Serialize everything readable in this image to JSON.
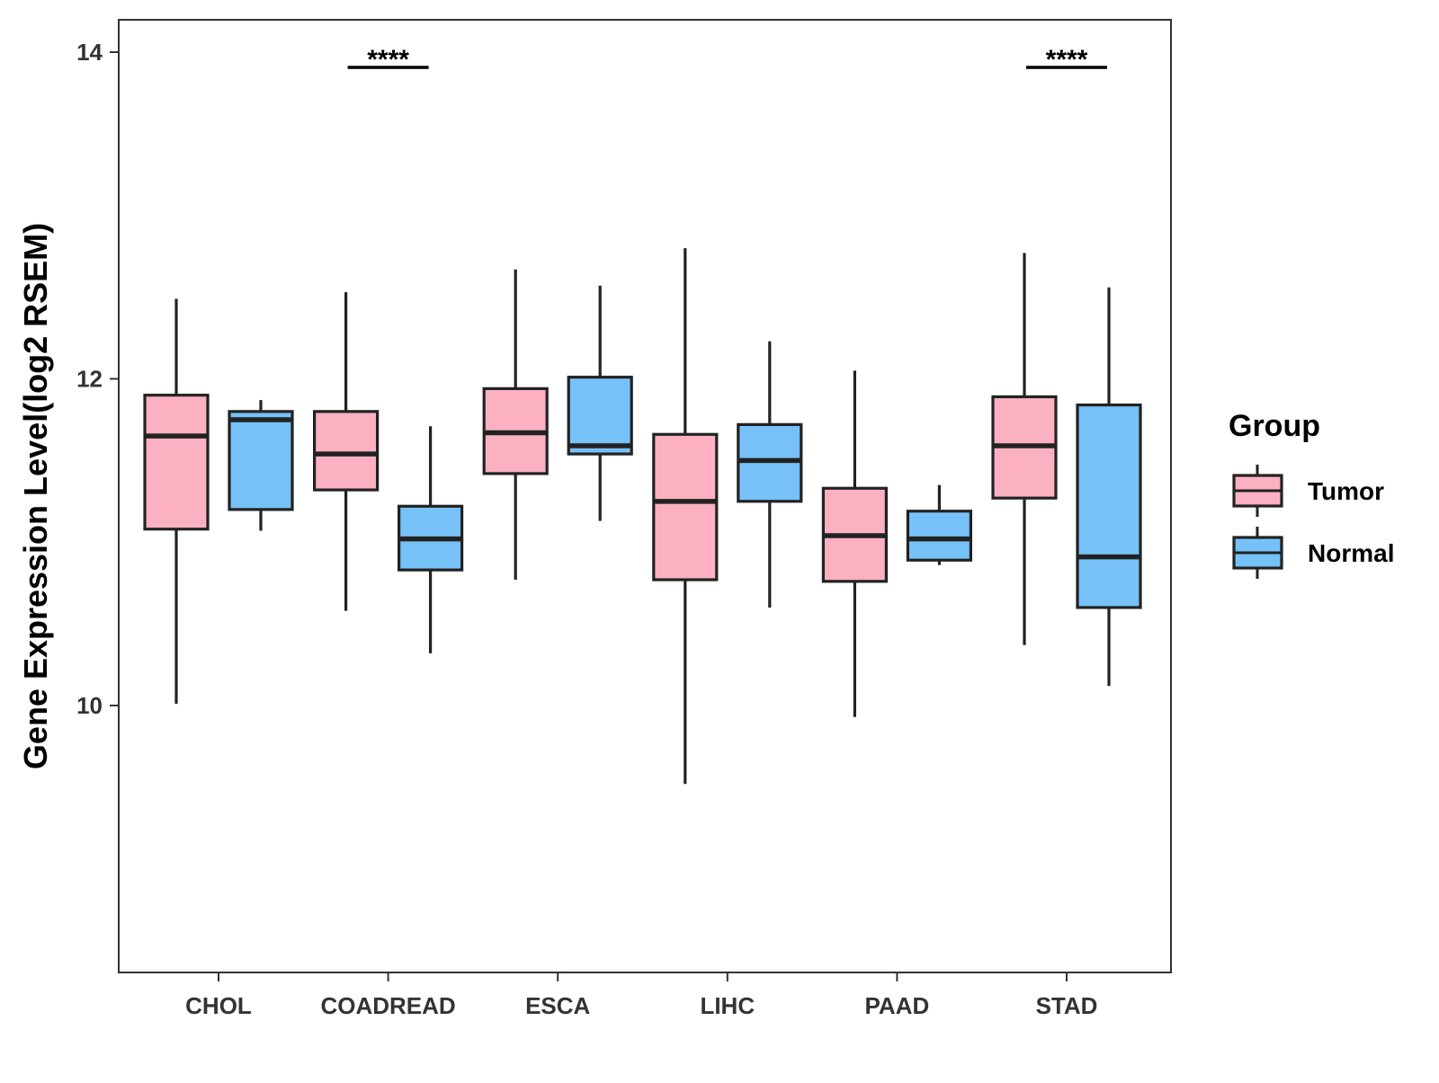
{
  "chart_data": {
    "type": "boxplot",
    "title": "",
    "xlabel": "",
    "ylabel": "Gene Expression Level(log2 RSEM)",
    "ylim": [
      8.4,
      14.2
    ],
    "yticks": [
      "10",
      "12",
      "14"
    ],
    "categories": [
      "CHOL",
      "COADREAD",
      "ESCA",
      "LIHC",
      "PAAD",
      "STAD"
    ],
    "legend": {
      "title": "Group",
      "position": "right",
      "items": [
        {
          "name": "Tumor",
          "color": "#FBB1C2"
        },
        {
          "name": "Normal",
          "color": "#76C1F8"
        }
      ]
    },
    "series": [
      {
        "name": "Tumor",
        "color": "#FBB1C2",
        "boxes": [
          {
            "category": "CHOL",
            "min": 10.01,
            "q1": 11.08,
            "median": 11.65,
            "q3": 11.9,
            "max": 12.49
          },
          {
            "category": "COADREAD",
            "min": 10.58,
            "q1": 11.32,
            "median": 11.54,
            "q3": 11.8,
            "max": 12.53
          },
          {
            "category": "ESCA",
            "min": 10.77,
            "q1": 11.42,
            "median": 11.67,
            "q3": 11.94,
            "max": 12.67
          },
          {
            "category": "LIHC",
            "min": 9.52,
            "q1": 10.77,
            "median": 11.25,
            "q3": 11.66,
            "max": 12.8
          },
          {
            "category": "PAAD",
            "min": 9.93,
            "q1": 10.76,
            "median": 11.04,
            "q3": 11.33,
            "max": 12.05
          },
          {
            "category": "STAD",
            "min": 10.37,
            "q1": 11.27,
            "median": 11.59,
            "q3": 11.89,
            "max": 12.77
          }
        ]
      },
      {
        "name": "Normal",
        "color": "#76C1F8",
        "boxes": [
          {
            "category": "CHOL",
            "min": 11.07,
            "q1": 11.2,
            "median": 11.75,
            "q3": 11.8,
            "max": 11.87
          },
          {
            "category": "COADREAD",
            "min": 10.32,
            "q1": 10.83,
            "median": 11.02,
            "q3": 11.22,
            "max": 11.71
          },
          {
            "category": "ESCA",
            "min": 11.13,
            "q1": 11.54,
            "median": 11.59,
            "q3": 12.01,
            "max": 12.57
          },
          {
            "category": "LIHC",
            "min": 10.6,
            "q1": 11.25,
            "median": 11.5,
            "q3": 11.72,
            "max": 12.23
          },
          {
            "category": "PAAD",
            "min": 10.86,
            "q1": 10.89,
            "median": 11.02,
            "q3": 11.19,
            "max": 11.35
          },
          {
            "category": "STAD",
            "min": 10.12,
            "q1": 10.6,
            "median": 10.91,
            "q3": 11.84,
            "max": 12.56
          }
        ]
      }
    ],
    "annotations": [
      {
        "category": "COADREAD",
        "label": "****"
      },
      {
        "category": "STAD",
        "label": "****"
      }
    ]
  }
}
